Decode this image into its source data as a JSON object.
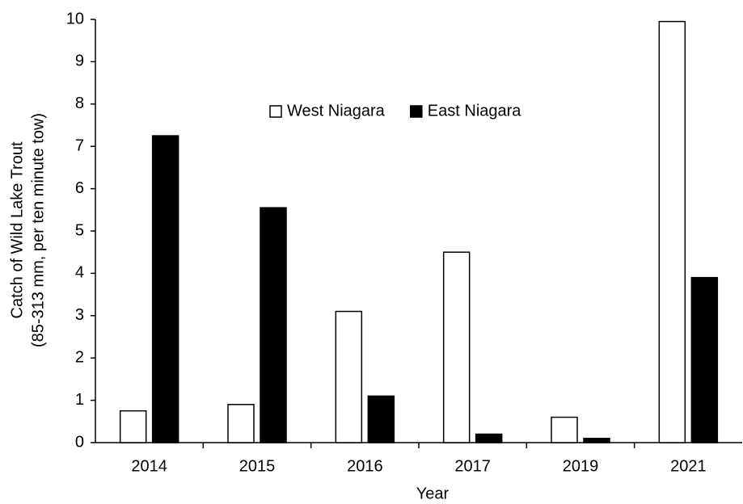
{
  "chart_data": {
    "type": "bar",
    "x_label": "Year",
    "y_label": [
      "Catch of  Wild Lake Trout",
      "(85-313 mm, per ten minute tow)"
    ],
    "categories": [
      "2014",
      "2015",
      "2016",
      "2017",
      "2019",
      "2021"
    ],
    "series": [
      {
        "name": "West Niagara",
        "color": "#ffffff",
        "values": [
          0.75,
          0.9,
          3.1,
          4.5,
          0.6,
          9.95
        ]
      },
      {
        "name": "East Niagara",
        "color": "#000000",
        "values": [
          7.25,
          5.55,
          1.1,
          0.2,
          0.1,
          3.9
        ]
      }
    ],
    "ylim": [
      0,
      10
    ],
    "yticks": [
      0,
      1,
      2,
      3,
      4,
      5,
      6,
      7,
      8,
      9,
      10
    ],
    "grid": false,
    "legend": "top"
  }
}
